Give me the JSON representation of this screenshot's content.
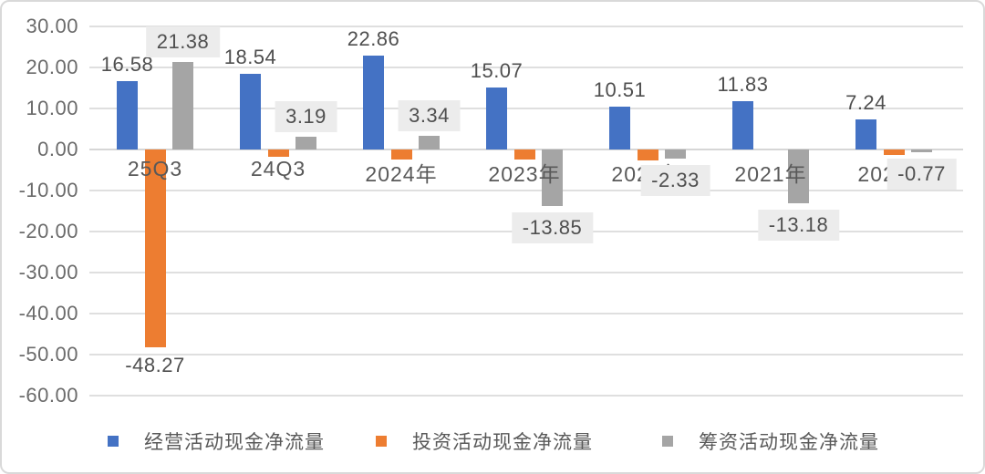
{
  "window": {
    "background": "#FFFFFF",
    "border_color": "#D9D9D9",
    "gridline_color": "#DFDFDF",
    "text_color": "#595959",
    "data_label_box_color": "#ECECEC"
  },
  "chart_data": {
    "type": "bar",
    "title": "",
    "categories": [
      "25Q3",
      "24Q3",
      "2024年",
      "2023年",
      "2022年",
      "2021年",
      "2020年"
    ],
    "series": [
      {
        "name": "经营活动现金净流量",
        "color": "#4472C4",
        "values": [
          16.58,
          18.54,
          22.86,
          15.07,
          10.51,
          11.83,
          7.24
        ],
        "shown_labels": [
          "16.58",
          "18.54",
          "22.86",
          "15.07",
          "10.51",
          "11.83",
          "7.24"
        ],
        "labels_boxed": false
      },
      {
        "name": "投资活动现金净流量",
        "color": "#ED7D31",
        "values": [
          -48.27,
          -1.8,
          -2.4,
          -2.4,
          -2.7,
          0,
          -1.4
        ],
        "shown_labels": [
          "-48.27",
          "",
          "",
          "",
          "",
          "",
          ""
        ],
        "labels_boxed": false
      },
      {
        "name": "筹资活动现金净流量",
        "color": "#A5A5A5",
        "values": [
          21.38,
          3.19,
          3.34,
          -13.85,
          -2.33,
          -13.18,
          -0.77
        ],
        "shown_labels": [
          "21.38",
          "3.19",
          "3.34",
          "-13.85",
          "-2.33",
          "-13.18",
          "-0.77"
        ],
        "labels_boxed": true
      }
    ],
    "y_axis": {
      "min": -60,
      "max": 30,
      "step": 10,
      "tick_labels": [
        "30.00",
        "20.00",
        "10.00",
        "0.00",
        "-10.00",
        "-20.00",
        "-30.00",
        "-40.00",
        "-50.00",
        "-60.00"
      ]
    },
    "xlabel": "",
    "ylabel": "",
    "grid": true,
    "legend_position": "bottom"
  }
}
